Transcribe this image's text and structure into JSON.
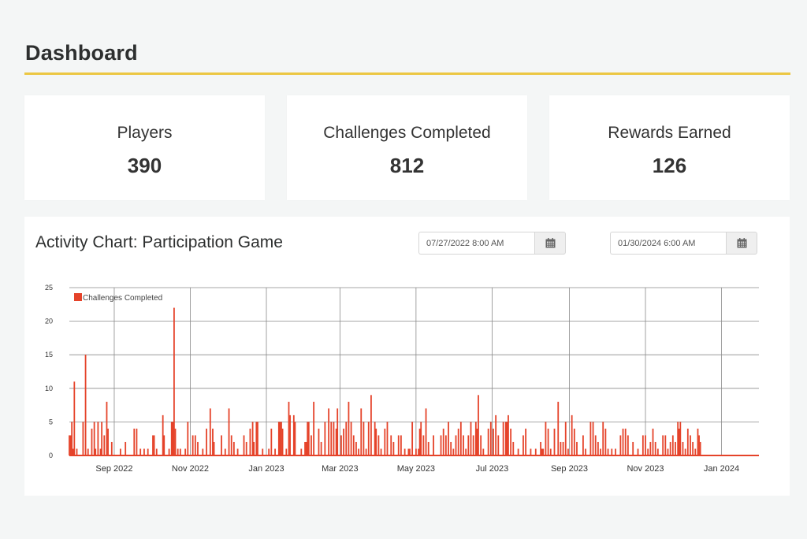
{
  "header": {
    "title": "Dashboard",
    "accent_color": "#ecc743"
  },
  "stats": [
    {
      "label": "Players",
      "value": "390"
    },
    {
      "label": "Challenges Completed",
      "value": "812"
    },
    {
      "label": "Rewards Earned",
      "value": "126"
    }
  ],
  "chart_panel": {
    "title": "Activity Chart: Participation Game",
    "start_date": {
      "value": "07/27/2022 8:00 AM",
      "icon": "calendar-icon"
    },
    "end_date": {
      "value": "01/30/2024 6:00 AM",
      "icon": "calendar-icon"
    }
  },
  "chart_data": {
    "type": "bar",
    "title": "Activity Chart: Participation Game",
    "xlabel": "",
    "ylabel": "",
    "ylim": [
      0,
      25
    ],
    "yticks": [
      0,
      5,
      10,
      15,
      20,
      25
    ],
    "xticks": [
      "Sep 2022",
      "Nov 2022",
      "Jan 2023",
      "Mar 2023",
      "May 2023",
      "Jul 2023",
      "Sep 2023",
      "Nov 2023",
      "Jan 2024"
    ],
    "grid": true,
    "legend": {
      "position": "top-left",
      "entries": [
        "Challenges Completed"
      ]
    },
    "series": [
      {
        "name": "Challenges Completed",
        "color": "#e5432a",
        "note": "Daily counts, approximate; x is days since 2022-07-27",
        "points": [
          [
            0,
            3
          ],
          [
            1,
            3
          ],
          [
            2,
            5
          ],
          [
            3,
            1
          ],
          [
            4,
            11
          ],
          [
            6,
            1
          ],
          [
            11,
            5
          ],
          [
            13,
            15
          ],
          [
            15,
            1
          ],
          [
            18,
            4
          ],
          [
            20,
            5
          ],
          [
            21,
            1
          ],
          [
            23,
            5
          ],
          [
            25,
            1
          ],
          [
            26,
            5
          ],
          [
            28,
            3
          ],
          [
            30,
            8
          ],
          [
            31,
            4
          ],
          [
            34,
            2
          ],
          [
            41,
            1
          ],
          [
            45,
            2
          ],
          [
            52,
            4
          ],
          [
            54,
            4
          ],
          [
            57,
            1
          ],
          [
            60,
            1
          ],
          [
            63,
            1
          ],
          [
            67,
            3
          ],
          [
            68,
            3
          ],
          [
            70,
            1
          ],
          [
            75,
            6
          ],
          [
            76,
            3
          ],
          [
            80,
            1
          ],
          [
            82,
            5
          ],
          [
            83,
            5
          ],
          [
            84,
            22
          ],
          [
            85,
            4
          ],
          [
            87,
            1
          ],
          [
            89,
            1
          ],
          [
            93,
            1
          ],
          [
            95,
            5
          ],
          [
            99,
            3
          ],
          [
            101,
            3
          ],
          [
            103,
            2
          ],
          [
            107,
            1
          ],
          [
            110,
            4
          ],
          [
            113,
            7
          ],
          [
            115,
            4
          ],
          [
            116,
            2
          ],
          [
            122,
            3
          ],
          [
            125,
            1
          ],
          [
            128,
            7
          ],
          [
            130,
            3
          ],
          [
            132,
            2
          ],
          [
            135,
            1
          ],
          [
            140,
            3
          ],
          [
            142,
            2
          ],
          [
            145,
            4
          ],
          [
            147,
            5
          ],
          [
            148,
            2
          ],
          [
            150,
            5
          ],
          [
            151,
            5
          ],
          [
            155,
            1
          ],
          [
            160,
            1
          ],
          [
            162,
            4
          ],
          [
            165,
            1
          ],
          [
            168,
            5
          ],
          [
            169,
            5
          ],
          [
            170,
            5
          ],
          [
            171,
            4
          ],
          [
            174,
            1
          ],
          [
            176,
            8
          ],
          [
            177,
            6
          ],
          [
            180,
            6
          ],
          [
            181,
            5
          ],
          [
            186,
            1
          ],
          [
            189,
            2
          ],
          [
            190,
            2
          ],
          [
            191,
            5
          ],
          [
            192,
            5
          ],
          [
            194,
            3
          ],
          [
            196,
            8
          ],
          [
            200,
            4
          ],
          [
            202,
            2
          ],
          [
            205,
            5
          ],
          [
            208,
            7
          ],
          [
            210,
            5
          ],
          [
            212,
            5
          ],
          [
            214,
            4
          ],
          [
            215,
            7
          ],
          [
            218,
            3
          ],
          [
            220,
            4
          ],
          [
            222,
            5
          ],
          [
            224,
            8
          ],
          [
            226,
            5
          ],
          [
            228,
            3
          ],
          [
            230,
            2
          ],
          [
            232,
            1
          ],
          [
            234,
            7
          ],
          [
            236,
            5
          ],
          [
            238,
            1
          ],
          [
            240,
            5
          ],
          [
            242,
            9
          ],
          [
            245,
            5
          ],
          [
            246,
            4
          ],
          [
            248,
            3
          ],
          [
            250,
            1
          ],
          [
            253,
            4
          ],
          [
            255,
            5
          ],
          [
            258,
            3
          ],
          [
            260,
            2
          ],
          [
            264,
            3
          ],
          [
            266,
            3
          ],
          [
            269,
            1
          ],
          [
            272,
            1
          ],
          [
            273,
            1
          ],
          [
            275,
            5
          ],
          [
            278,
            1
          ],
          [
            280,
            1
          ],
          [
            281,
            4
          ],
          [
            282,
            5
          ],
          [
            284,
            3
          ],
          [
            286,
            7
          ],
          [
            288,
            2
          ],
          [
            292,
            3
          ],
          [
            298,
            3
          ],
          [
            300,
            4
          ],
          [
            302,
            3
          ],
          [
            304,
            5
          ],
          [
            306,
            2
          ],
          [
            308,
            1
          ],
          [
            310,
            3
          ],
          [
            312,
            4
          ],
          [
            314,
            5
          ],
          [
            316,
            3
          ],
          [
            318,
            1
          ],
          [
            320,
            3
          ],
          [
            322,
            5
          ],
          [
            324,
            3
          ],
          [
            326,
            5
          ],
          [
            327,
            4
          ],
          [
            328,
            9
          ],
          [
            330,
            3
          ],
          [
            332,
            1
          ],
          [
            336,
            4
          ],
          [
            338,
            5
          ],
          [
            340,
            4
          ],
          [
            342,
            6
          ],
          [
            344,
            3
          ],
          [
            348,
            5
          ],
          [
            350,
            5
          ],
          [
            351,
            5
          ],
          [
            352,
            6
          ],
          [
            354,
            4
          ],
          [
            356,
            2
          ],
          [
            360,
            1
          ],
          [
            364,
            3
          ],
          [
            366,
            4
          ],
          [
            370,
            1
          ],
          [
            374,
            1
          ],
          [
            378,
            2
          ],
          [
            379,
            1
          ],
          [
            380,
            1
          ],
          [
            382,
            5
          ],
          [
            384,
            4
          ],
          [
            386,
            1
          ],
          [
            389,
            4
          ],
          [
            392,
            8
          ],
          [
            394,
            2
          ],
          [
            396,
            2
          ],
          [
            398,
            5
          ],
          [
            400,
            1
          ],
          [
            403,
            6
          ],
          [
            405,
            4
          ],
          [
            407,
            2
          ],
          [
            412,
            3
          ],
          [
            414,
            1
          ],
          [
            418,
            5
          ],
          [
            420,
            5
          ],
          [
            422,
            3
          ],
          [
            424,
            2
          ],
          [
            426,
            1
          ],
          [
            428,
            5
          ],
          [
            430,
            4
          ],
          [
            432,
            1
          ],
          [
            435,
            1
          ],
          [
            438,
            1
          ],
          [
            442,
            3
          ],
          [
            444,
            4
          ],
          [
            446,
            4
          ],
          [
            448,
            3
          ],
          [
            452,
            2
          ],
          [
            456,
            1
          ],
          [
            460,
            3
          ],
          [
            462,
            3
          ],
          [
            464,
            1
          ],
          [
            466,
            2
          ],
          [
            468,
            4
          ],
          [
            470,
            2
          ],
          [
            472,
            1
          ],
          [
            476,
            3
          ],
          [
            478,
            3
          ],
          [
            480,
            1
          ],
          [
            482,
            2
          ],
          [
            484,
            3
          ],
          [
            486,
            2
          ],
          [
            488,
            5
          ],
          [
            489,
            4
          ],
          [
            490,
            5
          ],
          [
            492,
            2
          ],
          [
            494,
            1
          ],
          [
            496,
            4
          ],
          [
            498,
            3
          ],
          [
            500,
            2
          ],
          [
            502,
            1
          ],
          [
            504,
            4
          ],
          [
            505,
            3
          ],
          [
            506,
            2
          ]
        ]
      }
    ]
  }
}
